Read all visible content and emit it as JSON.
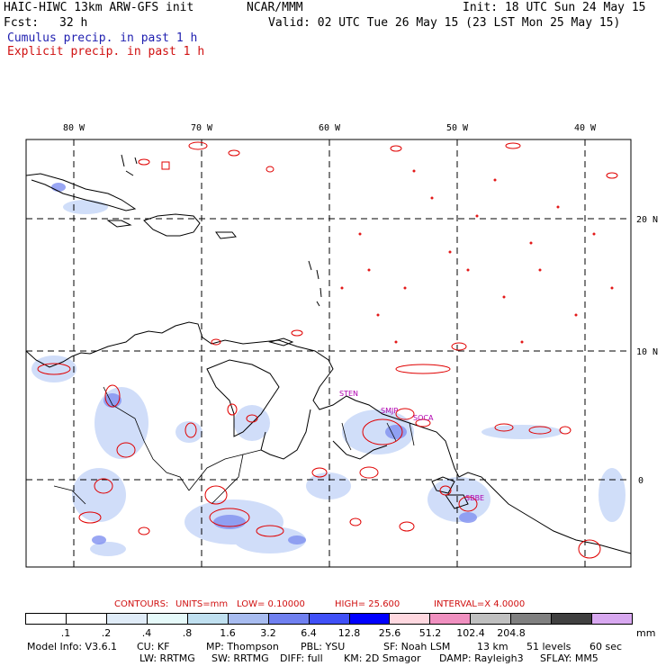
{
  "header": {
    "model": "HAIC-HIWC 13km ARW-GFS init",
    "org": "NCAR/MMM",
    "init": "Init: 18 UTC Sun 24 May 15",
    "fcst_label": "Fcst:",
    "fcst_value": "32 h",
    "valid": "Valid: 02 UTC Tue 26 May 15 (23 LST Mon 25 May 15)",
    "cumulus": "Cumulus precip. in past 1 h",
    "explicit": "Explicit precip. in past 1 h"
  },
  "colors": {
    "cumulus_text": "#1f1fb0",
    "explicit_text": "#d01010",
    "contour": "#e00000",
    "station": "#b000b0"
  },
  "map": {
    "lon_labels": [
      "80 W",
      "70 W",
      "60 W",
      "50 W",
      "40 W"
    ],
    "lat_labels": [
      "20 N",
      "10 N",
      "0"
    ],
    "stations": [
      "STEN",
      "SMJP",
      "SOCA",
      "SBBE"
    ]
  },
  "contours": {
    "label": "CONTOURS:",
    "units": "UNITS=mm",
    "low": "LOW= 0.10000",
    "high": "HIGH= 25.600",
    "interval": "INTERVAL=X 4.0000"
  },
  "scale": {
    "labels": [
      ".1",
      ".2",
      ".4",
      ".8",
      "1.6",
      "3.2",
      "6.4",
      "12.8",
      "25.6",
      "51.2",
      "102.4",
      "204.8"
    ],
    "unit": "mm",
    "colors": [
      "#ffffff",
      "#ffffff",
      "#e0ecf8",
      "#e6fafa",
      "#c0e0f0",
      "#a8bcf0",
      "#7080f0",
      "#4050f8",
      "#0000ff",
      "#ffd8e0",
      "#f090c0",
      "#c0c0c0",
      "#808080",
      "#404040",
      "#d8a8f0"
    ]
  },
  "footer": {
    "line1": [
      "Model Info: V3.6.1",
      "CU: KF",
      "MP: Thompson",
      "PBL: YSU",
      "SF: Noah LSM",
      "13 km",
      "51 levels",
      "60 sec"
    ],
    "line2": [
      "LW: RRTMG",
      "SW: RRTMG",
      "DIFF: full",
      "KM: 2D Smagor",
      "DAMP: Rayleigh3",
      "SFLAY: MM5"
    ]
  }
}
